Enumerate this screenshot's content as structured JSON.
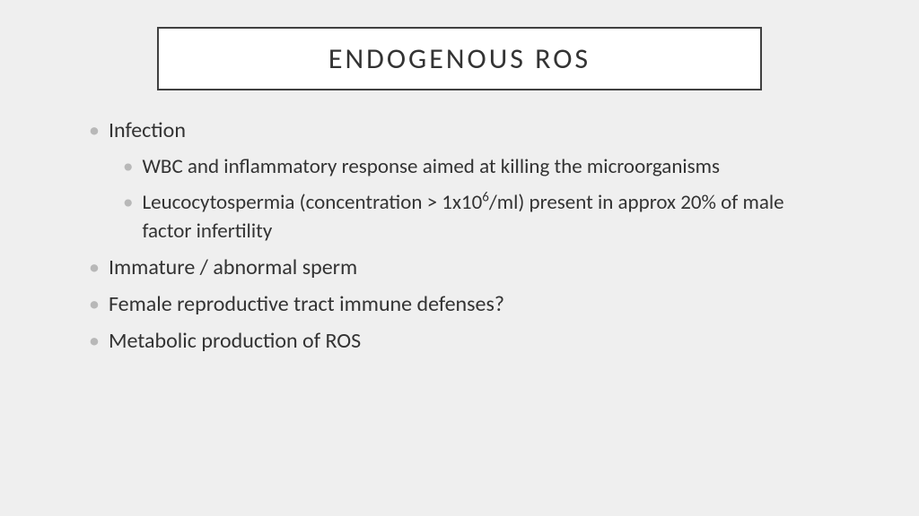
{
  "slide": {
    "title": "ENDOGENOUS ROS",
    "bullets": [
      {
        "text": "Infection",
        "children": [
          {
            "text": "WBC and inflammatory response aimed at killing the microorganisms"
          },
          {
            "text_html": "Leucocytospermia (concentration > 1x10<sup>6</sup>/ml) present in approx 20% of male factor infertility"
          }
        ]
      },
      {
        "text": "Immature / abnormal sperm"
      },
      {
        "text": "Female reproductive tract immune defenses?"
      },
      {
        "text": "Metabolic production of ROS"
      }
    ],
    "style": {
      "background_color": "#efefef",
      "title_box_border": "#404040",
      "title_box_bg": "#ffffff",
      "text_color": "#333333",
      "bullet_color": "#b8b8b8",
      "title_fontsize": 32,
      "lvl1_fontsize": 24,
      "lvl2_fontsize": 23,
      "letter_spacing_title": 3
    }
  }
}
